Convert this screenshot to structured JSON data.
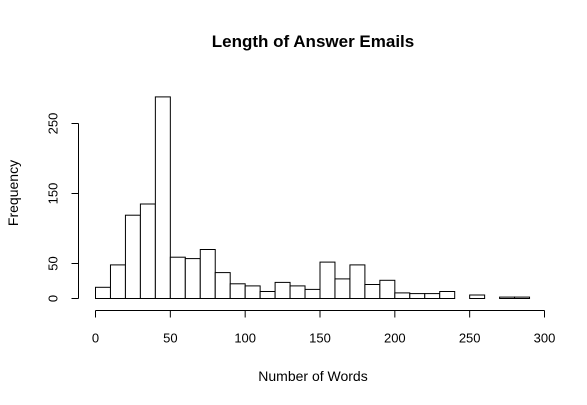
{
  "chart_data": {
    "type": "bar",
    "title": "Length of Answer Emails",
    "xlabel": "Number of Words",
    "ylabel": "Frequency",
    "xlim": [
      0,
      300
    ],
    "ylim": [
      0,
      300
    ],
    "x_ticks": [
      0,
      50,
      100,
      150,
      200,
      250,
      300
    ],
    "y_ticks": [
      0,
      50,
      150,
      250
    ],
    "bin_width": 10,
    "bins": [
      {
        "x0": 0,
        "x1": 10,
        "count": 16
      },
      {
        "x0": 10,
        "x1": 20,
        "count": 48
      },
      {
        "x0": 20,
        "x1": 30,
        "count": 119
      },
      {
        "x0": 30,
        "x1": 40,
        "count": 135
      },
      {
        "x0": 40,
        "x1": 50,
        "count": 288
      },
      {
        "x0": 50,
        "x1": 60,
        "count": 59
      },
      {
        "x0": 60,
        "x1": 70,
        "count": 57
      },
      {
        "x0": 70,
        "x1": 80,
        "count": 70
      },
      {
        "x0": 80,
        "x1": 90,
        "count": 37
      },
      {
        "x0": 90,
        "x1": 100,
        "count": 21
      },
      {
        "x0": 100,
        "x1": 110,
        "count": 18
      },
      {
        "x0": 110,
        "x1": 120,
        "count": 10
      },
      {
        "x0": 120,
        "x1": 130,
        "count": 23
      },
      {
        "x0": 130,
        "x1": 140,
        "count": 18
      },
      {
        "x0": 140,
        "x1": 150,
        "count": 13
      },
      {
        "x0": 150,
        "x1": 160,
        "count": 52
      },
      {
        "x0": 160,
        "x1": 170,
        "count": 28
      },
      {
        "x0": 170,
        "x1": 180,
        "count": 48
      },
      {
        "x0": 180,
        "x1": 190,
        "count": 20
      },
      {
        "x0": 190,
        "x1": 200,
        "count": 26
      },
      {
        "x0": 200,
        "x1": 210,
        "count": 8
      },
      {
        "x0": 210,
        "x1": 220,
        "count": 7
      },
      {
        "x0": 220,
        "x1": 230,
        "count": 7
      },
      {
        "x0": 230,
        "x1": 240,
        "count": 10
      },
      {
        "x0": 240,
        "x1": 250,
        "count": 0
      },
      {
        "x0": 250,
        "x1": 260,
        "count": 5
      },
      {
        "x0": 260,
        "x1": 270,
        "count": 0
      },
      {
        "x0": 270,
        "x1": 280,
        "count": 2
      },
      {
        "x0": 280,
        "x1": 290,
        "count": 2
      }
    ],
    "grid": false,
    "legend": "none"
  }
}
